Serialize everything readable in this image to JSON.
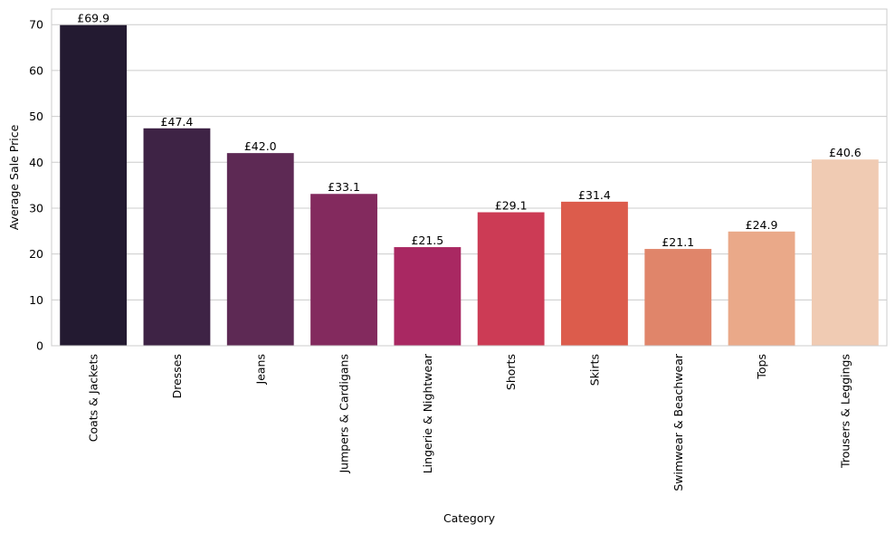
{
  "chart_data": {
    "type": "bar",
    "categories": [
      "Coats & Jackets",
      "Dresses",
      "Jeans",
      "Jumpers & Cardigans",
      "Lingerie & Nightwear",
      "Shorts",
      "Skirts",
      "Swimwear & Beachwear",
      "Tops",
      "Trousers & Leggings"
    ],
    "values": [
      69.9,
      47.4,
      42.0,
      33.1,
      21.5,
      29.1,
      31.4,
      21.1,
      24.9,
      40.6
    ],
    "data_labels": [
      "£69.9",
      "£47.4",
      "£42.0",
      "£33.1",
      "£21.5",
      "£29.1",
      "£31.4",
      "£21.1",
      "£24.9",
      "£40.6"
    ],
    "colors": [
      "#231a31",
      "#3e2345",
      "#5d2954",
      "#832a5e",
      "#a92862",
      "#cc3b55",
      "#dc5c4c",
      "#e0856a",
      "#eaa989",
      "#f0cbb3"
    ],
    "title": "",
    "xlabel": "Category",
    "ylabel": "Average Sale Price",
    "ylim": [
      0,
      73.4
    ],
    "yticks": [
      0,
      10,
      20,
      30,
      40,
      50,
      60,
      70
    ],
    "grid": true,
    "legend": "none"
  }
}
